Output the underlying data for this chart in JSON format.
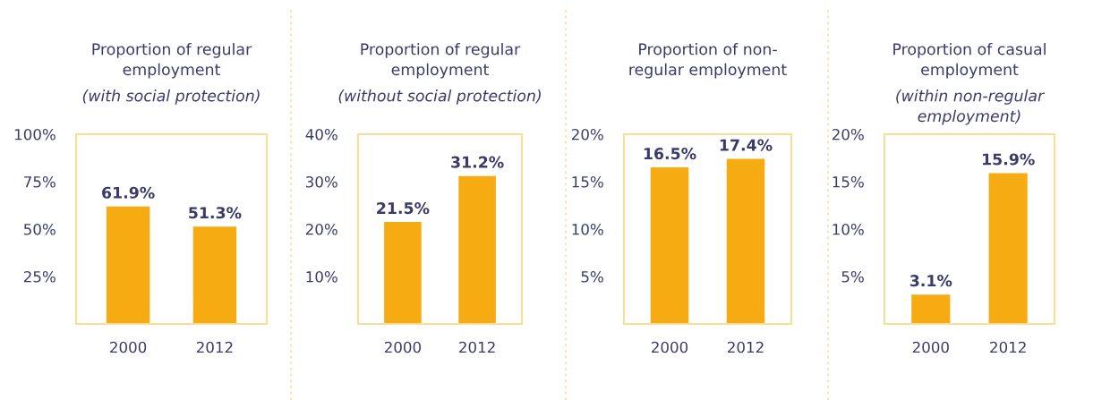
{
  "chart_data": [
    {
      "type": "bar",
      "title": "Proportion of regular\nemployment",
      "subtitle": "(with social protection)",
      "categories": [
        "2000",
        "2012"
      ],
      "values": [
        61.9,
        51.3
      ],
      "value_labels": [
        "61.9%",
        "51.3%"
      ],
      "color": "#f7ab12",
      "ylim": [
        0,
        100
      ],
      "yticks": [
        {
          "value": 25,
          "label": "25%"
        },
        {
          "value": 50,
          "label": "50%"
        },
        {
          "value": 75,
          "label": "75%"
        },
        {
          "value": 100,
          "label": "100%"
        }
      ],
      "grid": false,
      "legend": false
    },
    {
      "type": "bar",
      "title": "Proportion of regular\nemployment",
      "subtitle": "(without social protection)",
      "categories": [
        "2000",
        "2012"
      ],
      "values": [
        21.5,
        31.2
      ],
      "value_labels": [
        "21.5%",
        "31.2%"
      ],
      "color": "#f7ab12",
      "ylim": [
        0,
        40
      ],
      "yticks": [
        {
          "value": 10,
          "label": "10%"
        },
        {
          "value": 20,
          "label": "20%"
        },
        {
          "value": 30,
          "label": "30%"
        },
        {
          "value": 40,
          "label": "40%"
        }
      ],
      "grid": false,
      "legend": false
    },
    {
      "type": "bar",
      "title": "Proportion of non-\nregular employment",
      "categories": [
        "2000",
        "2012"
      ],
      "values": [
        16.5,
        17.4
      ],
      "value_labels": [
        "16.5%",
        "17.4%"
      ],
      "color": "#f7ab12",
      "ylim": [
        0,
        20
      ],
      "yticks": [
        {
          "value": 5,
          "label": "5%"
        },
        {
          "value": 10,
          "label": "10%"
        },
        {
          "value": 15,
          "label": "15%"
        },
        {
          "value": 20,
          "label": "20%"
        }
      ],
      "grid": false,
      "legend": false
    },
    {
      "type": "bar",
      "title": "Proportion of casual\nemployment",
      "subtitle": "(within non-regular\nemployment)",
      "categories": [
        "2000",
        "2012"
      ],
      "values": [
        3.1,
        15.9
      ],
      "value_labels": [
        "3.1%",
        "15.9%"
      ],
      "color": "#f7ab12",
      "ylim": [
        0,
        20
      ],
      "yticks": [
        {
          "value": 5,
          "label": "5%"
        },
        {
          "value": 10,
          "label": "10%"
        },
        {
          "value": 15,
          "label": "15%"
        },
        {
          "value": 20,
          "label": "20%"
        }
      ],
      "grid": false,
      "legend": false
    }
  ]
}
